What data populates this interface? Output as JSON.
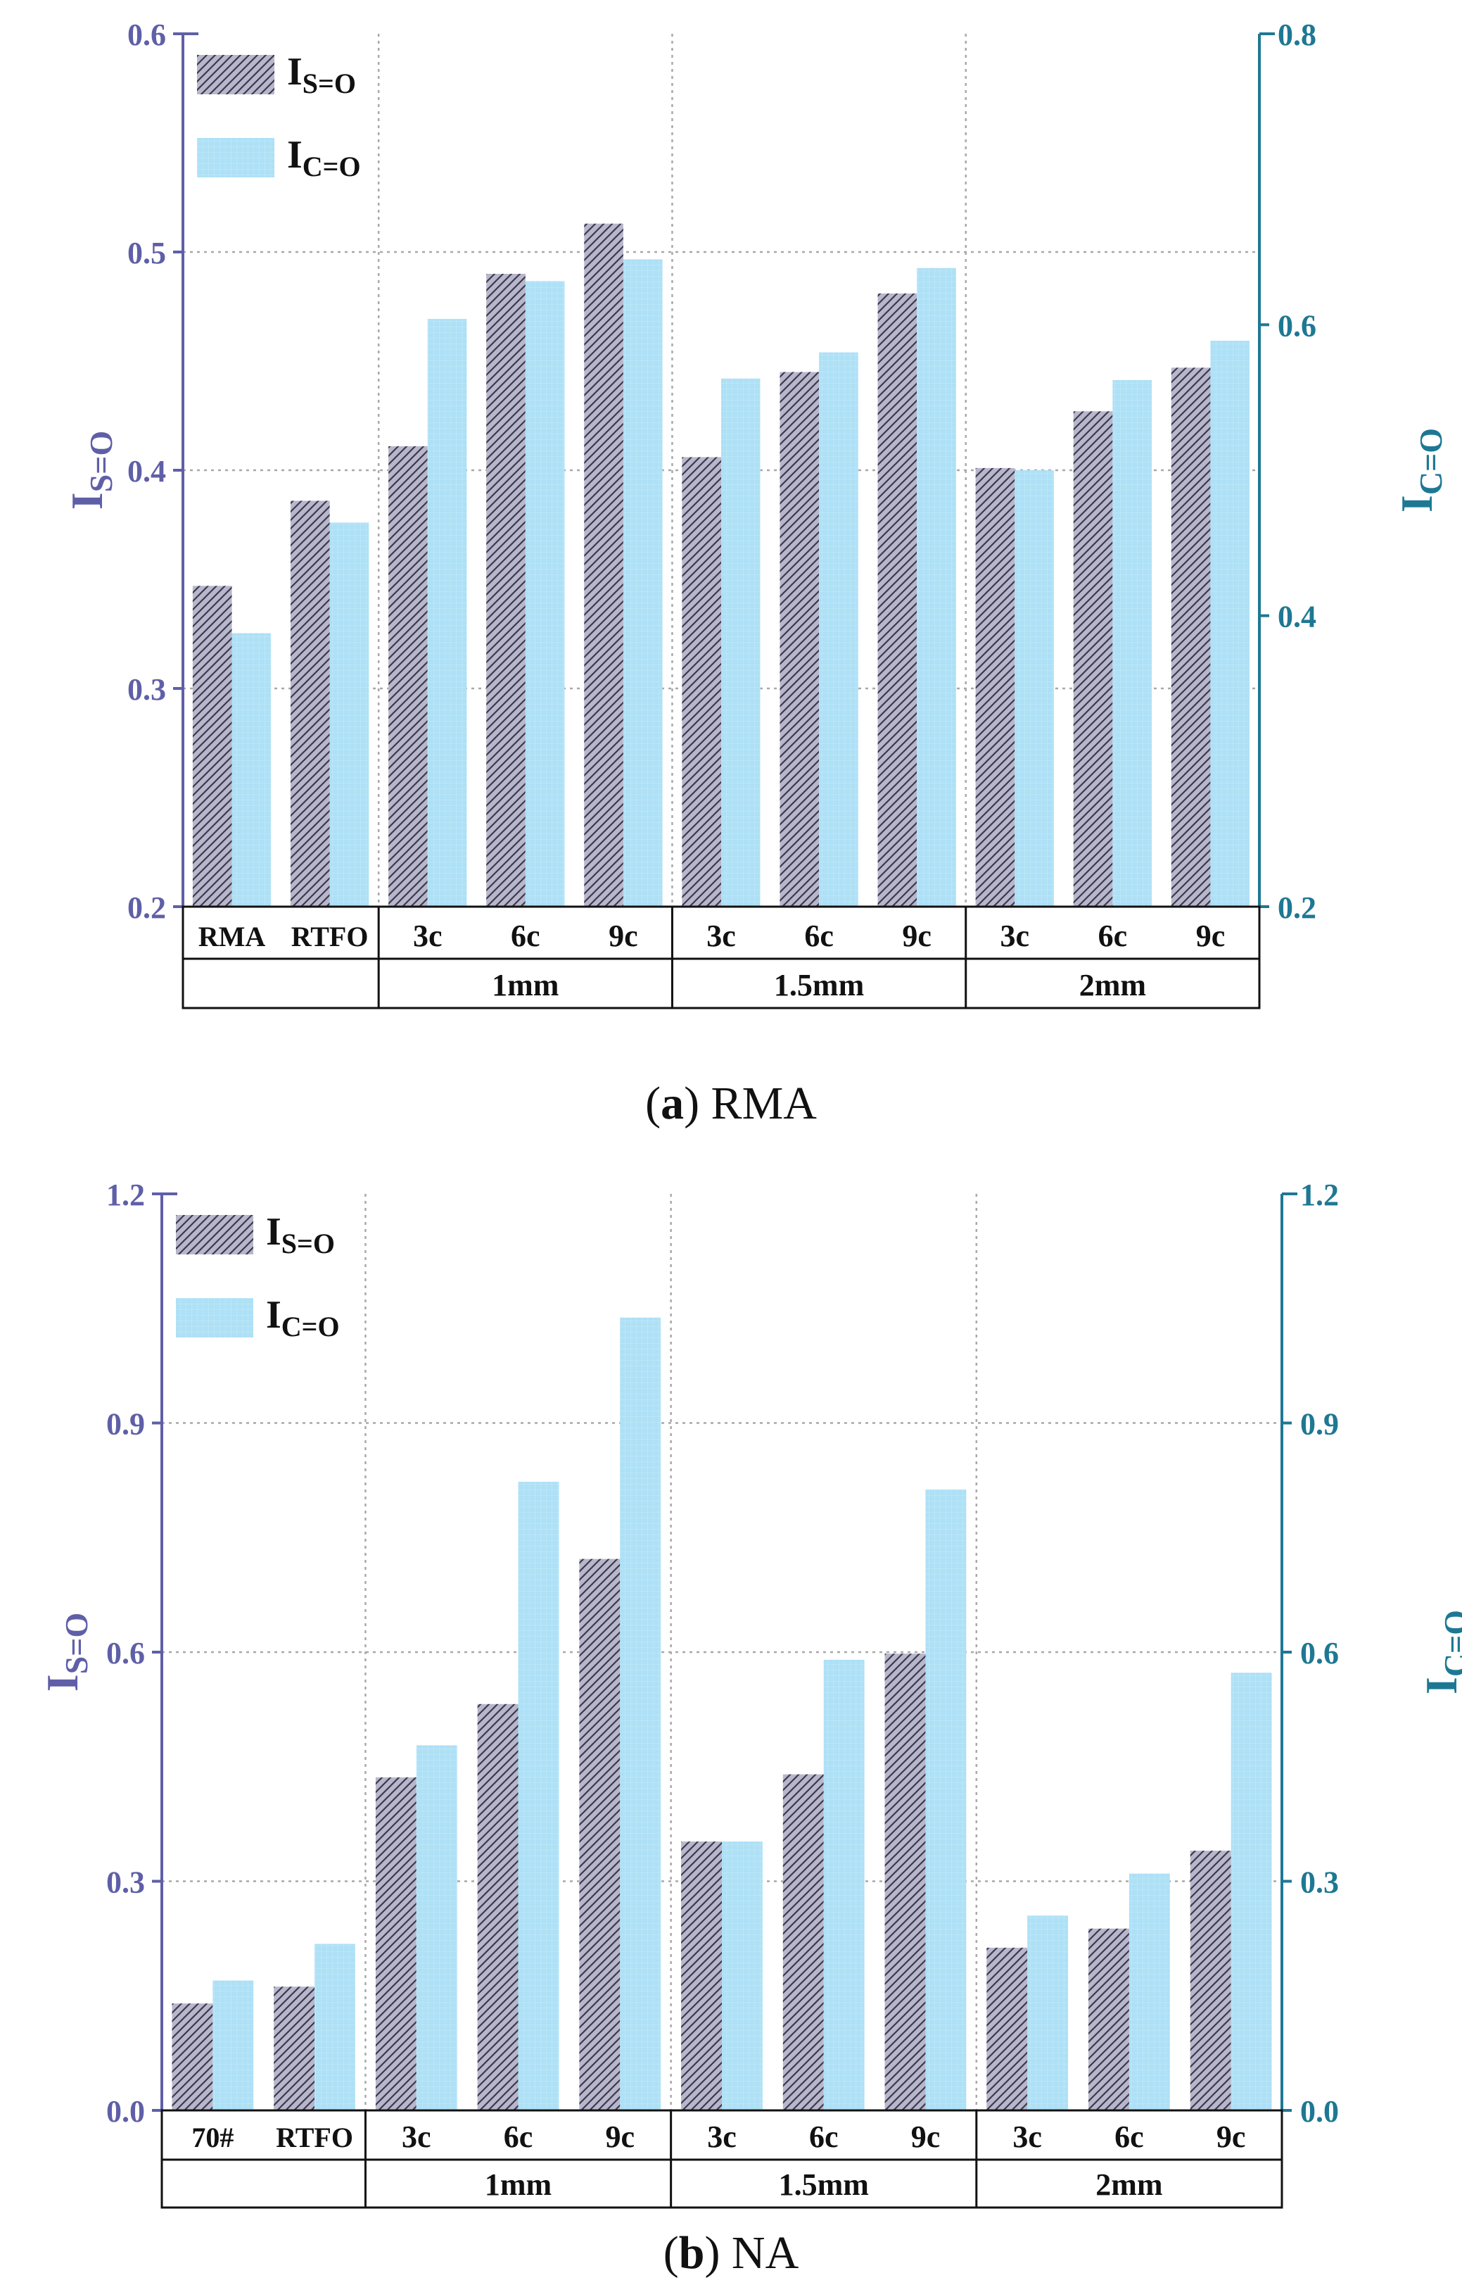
{
  "chart_data": [
    {
      "type": "bar",
      "caption": {
        "letter": "a",
        "open": "(",
        "close": ")",
        "text": " RMA"
      },
      "categories": [
        "RMA",
        "RTFO",
        "3c",
        "6c",
        "9c",
        "3c",
        "6c",
        "9c",
        "3c",
        "6c",
        "9c"
      ],
      "groups": [
        {
          "label": "",
          "span": 2
        },
        {
          "label": "1mm",
          "span": 3
        },
        {
          "label": "1.5mm",
          "span": 3
        },
        {
          "label": "2mm",
          "span": 3
        }
      ],
      "series": [
        {
          "name": "I",
          "sub": "S=O",
          "axis": "left",
          "color": "#b8b6cc",
          "pattern": "hatch",
          "values": [
            0.347,
            0.386,
            0.411,
            0.49,
            0.513,
            0.406,
            0.445,
            0.481,
            0.401,
            0.427,
            0.447
          ]
        },
        {
          "name": "I",
          "sub": "C=O",
          "axis": "right",
          "color": "#aee0f6",
          "pattern": "grid",
          "values": [
            0.388,
            0.464,
            0.604,
            0.63,
            0.645,
            0.563,
            0.581,
            0.639,
            0.5,
            0.562,
            0.589
          ]
        }
      ],
      "ylabel_left": {
        "main": "I",
        "sub": "S=O"
      },
      "ylabel_right": {
        "main": "I",
        "sub": "C=O"
      },
      "ylim_left": [
        0.2,
        0.6
      ],
      "ylim_right": [
        0.2,
        0.8
      ],
      "yticks_left": [
        "0.2",
        "0.3",
        "0.4",
        "0.5",
        "0.6"
      ],
      "yticks_right": [
        "0.2",
        "0.4",
        "0.6",
        "0.8"
      ],
      "left_axis_color": "#5f5fa8",
      "right_axis_color": "#1e7893",
      "grid": true,
      "legend": "top-left"
    },
    {
      "type": "bar",
      "caption": {
        "letter": "b",
        "open": "(",
        "close": ")",
        "text": " NA"
      },
      "categories": [
        "70#",
        "RTFO",
        "3c",
        "6c",
        "9c",
        "3c",
        "6c",
        "9c",
        "3c",
        "6c",
        "9c"
      ],
      "groups": [
        {
          "label": "",
          "span": 2
        },
        {
          "label": "1mm",
          "span": 3
        },
        {
          "label": "1.5mm",
          "span": 3
        },
        {
          "label": "2mm",
          "span": 3
        }
      ],
      "series": [
        {
          "name": "I",
          "sub": "S=O",
          "axis": "left",
          "color": "#b8b6cc",
          "pattern": "hatch",
          "values": [
            0.14,
            0.162,
            0.436,
            0.532,
            0.722,
            0.352,
            0.44,
            0.598,
            0.213,
            0.238,
            0.34
          ]
        },
        {
          "name": "I",
          "sub": "C=O",
          "axis": "right",
          "color": "#aee0f6",
          "pattern": "grid",
          "values": [
            0.17,
            0.218,
            0.478,
            0.823,
            1.038,
            0.352,
            0.59,
            0.813,
            0.255,
            0.31,
            0.573
          ]
        }
      ],
      "ylabel_left": {
        "main": "I",
        "sub": "S=O"
      },
      "ylabel_right": {
        "main": "I",
        "sub": "C=O"
      },
      "ylim_left": [
        0.0,
        1.2
      ],
      "ylim_right": [
        0.0,
        1.2
      ],
      "yticks_left": [
        "0.0",
        "0.3",
        "0.6",
        "0.9",
        "1.2"
      ],
      "yticks_right": [
        "0.0",
        "0.3",
        "0.6",
        "0.9",
        "1.2"
      ],
      "left_axis_color": "#5f5fa8",
      "right_axis_color": "#1e7893",
      "grid": true,
      "legend": "top-left"
    }
  ]
}
